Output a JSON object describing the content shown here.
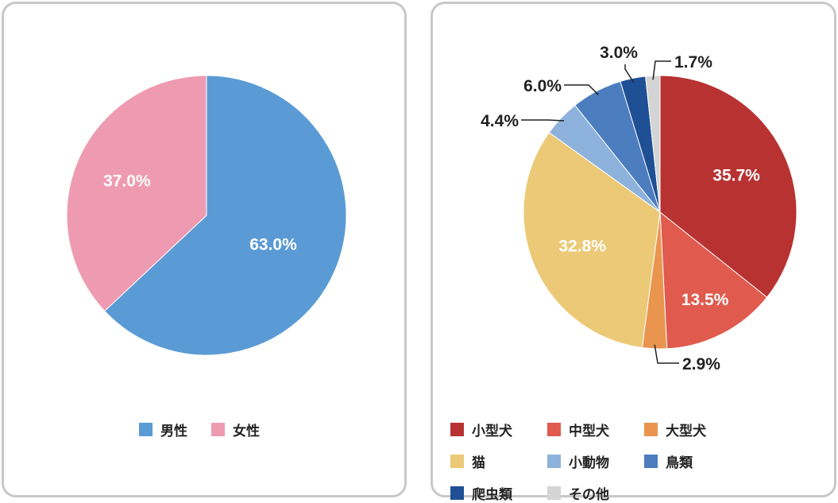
{
  "chart_data": [
    {
      "type": "pie",
      "categories": [
        "男性",
        "女性"
      ],
      "values": [
        63.0,
        37.0
      ],
      "labels": [
        "63.0%",
        "37.0%"
      ],
      "colors": [
        "#5b9bd5",
        "#ee9bb2"
      ],
      "legend": "bottom"
    },
    {
      "type": "pie",
      "categories": [
        "小型犬",
        "中型犬",
        "大型犬",
        "猫",
        "小動物",
        "鳥類",
        "爬虫類",
        "その他"
      ],
      "values": [
        35.7,
        13.5,
        2.9,
        32.8,
        4.4,
        6.0,
        3.0,
        1.7
      ],
      "labels": [
        "35.7%",
        "13.5%",
        "2.9%",
        "32.8%",
        "4.4%",
        "6.0%",
        "3.0%",
        "1.7%"
      ],
      "colors": [
        "#b83232",
        "#e05a4e",
        "#e9954f",
        "#ecc977",
        "#8db3dc",
        "#4c7dbe",
        "#1f4f95",
        "#d4d4d4"
      ],
      "legend": "bottom"
    }
  ]
}
